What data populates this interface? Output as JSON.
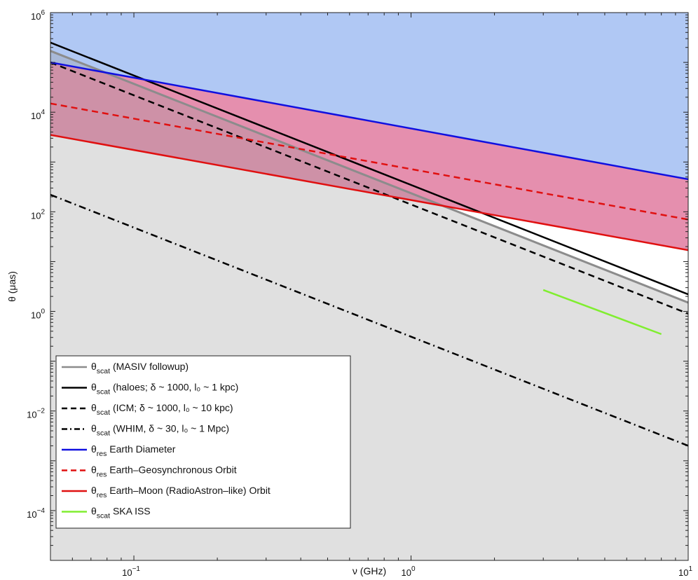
{
  "chart_data": {
    "type": "line",
    "title": "",
    "xlabel": "ν (GHz)",
    "ylabel": "θ (μas)",
    "xscale": "log",
    "yscale": "log",
    "xlim": [
      0.05,
      10
    ],
    "ylim": [
      1e-05,
      1000000.0
    ],
    "x_ticks": [
      {
        "base": "10",
        "exp": "−1",
        "value": 0.1
      },
      {
        "base": "10",
        "exp": "0",
        "value": 1
      },
      {
        "base": "10",
        "exp": "1",
        "value": 10
      }
    ],
    "y_ticks": [
      {
        "base": "10",
        "exp": "−4",
        "value": 0.0001
      },
      {
        "base": "10",
        "exp": "−2",
        "value": 0.01
      },
      {
        "base": "10",
        "exp": "0",
        "value": 1
      },
      {
        "base": "10",
        "exp": "2",
        "value": 100
      },
      {
        "base": "10",
        "exp": "4",
        "value": 10000
      },
      {
        "base": "10",
        "exp": "6",
        "value": 1000000
      }
    ],
    "grid": false,
    "legend_position": "bottom-left",
    "shaded_regions": [
      {
        "name": "above Earth Diameter resolution",
        "color": "#b0c8f4",
        "bound": "Earth Diameter"
      },
      {
        "name": "between Earth Diameter and Earth–Moon resolution",
        "color": "#e58fae"
      },
      {
        "name": "below MASIV followup scattering",
        "color": "#999999",
        "opacity": 0.3
      }
    ],
    "series": [
      {
        "key": "masiv",
        "name_main": "θ",
        "name_sub": "scat",
        "name_rest": " (MASIV followup)",
        "color": "#8c8c8c",
        "dash": "solid",
        "x": [
          0.05,
          10
        ],
        "y": [
          170000,
          1.5
        ]
      },
      {
        "key": "haloes",
        "name_main": "θ",
        "name_sub": "scat",
        "name_rest": " (haloes; δ ~ 1000, l₀ ~ 1 kpc)",
        "color": "#000000",
        "dash": "solid",
        "x": [
          0.05,
          10
        ],
        "y": [
          250000,
          2.2
        ]
      },
      {
        "key": "icm",
        "name_main": "θ",
        "name_sub": "scat",
        "name_rest": " (ICM; δ ~ 1000, l₀ ~ 10 kpc)",
        "color": "#000000",
        "dash": "dashed",
        "x": [
          0.05,
          10
        ],
        "y": [
          100000,
          0.9
        ]
      },
      {
        "key": "whim",
        "name_main": "θ",
        "name_sub": "scat",
        "name_rest": " (WHIM, δ ~ 30, l₀ ~ 1 Mpc)",
        "color": "#000000",
        "dash": "dashdot",
        "x": [
          0.05,
          10
        ],
        "y": [
          220,
          0.002
        ]
      },
      {
        "key": "earth_diameter",
        "name_main": "θ",
        "name_sub": "res",
        "name_rest": " Earth Diameter",
        "color": "#1010e0",
        "dash": "solid",
        "x": [
          0.05,
          10
        ],
        "y": [
          100000,
          450
        ]
      },
      {
        "key": "geo",
        "name_main": "θ",
        "name_sub": "res",
        "name_rest": " Earth–Geosynchronous Orbit",
        "color": "#e01010",
        "dash": "dashed",
        "x": [
          0.05,
          10
        ],
        "y": [
          15000,
          70
        ]
      },
      {
        "key": "earth_moon",
        "name_main": "θ",
        "name_sub": "res",
        "name_rest": " Earth–Moon (RadioAstron–like) Orbit",
        "color": "#e01010",
        "dash": "solid",
        "x": [
          0.05,
          10
        ],
        "y": [
          3500,
          17
        ]
      },
      {
        "key": "ska",
        "name_main": "θ",
        "name_sub": "scat",
        "name_rest": " SKA ISS",
        "color": "#80ee30",
        "dash": "solid",
        "x": [
          3,
          8
        ],
        "y": [
          2.7,
          0.35
        ]
      }
    ]
  }
}
